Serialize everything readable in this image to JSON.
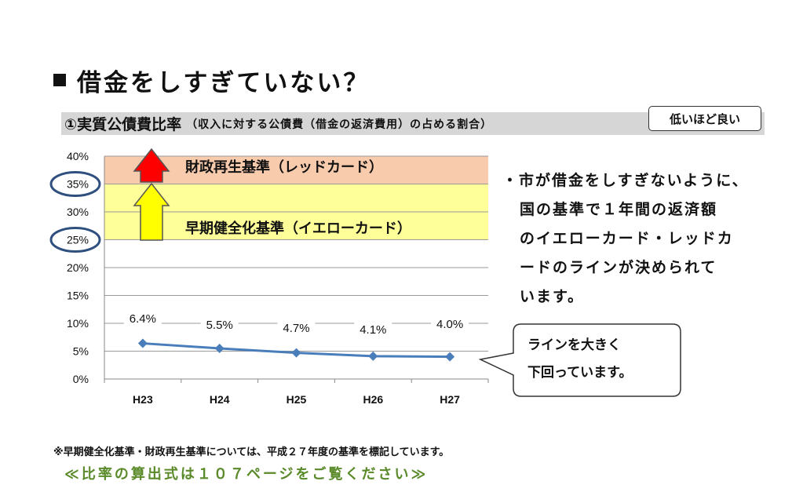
{
  "page": {
    "title": "借金をしすぎていない？",
    "subhead_main": "①実質公債費比率",
    "subhead_paren": "（収入に対する公債費（借金の返済費用）の占める割合）",
    "badge": "低いほど良い",
    "note_lines": [
      "・市が借金をしすぎないように、",
      "国の基準で１年間の返済額",
      "のイエローカード・レッドカ",
      "ードのラインが決められて",
      "います。"
    ],
    "callout_lines": [
      "ラインを大きく",
      "下回っています。"
    ],
    "footnote": "※早期健全化基準・財政再生基準については、平成２７年度の基準を標記しています。",
    "ref": "≪比率の算出式は１０７ページをご覧ください≫"
  },
  "chart_data": {
    "type": "line",
    "categories": [
      "H23",
      "H24",
      "H25",
      "H26",
      "H27"
    ],
    "values": [
      6.4,
      5.5,
      4.7,
      4.1,
      4.0
    ],
    "data_labels": [
      "6.4%",
      "5.5%",
      "4.7%",
      "4.1%",
      "4.0%"
    ],
    "ylim": [
      0,
      40
    ],
    "yticks": [
      0,
      5,
      10,
      15,
      20,
      25,
      30,
      35,
      40
    ],
    "ytick_labels": [
      "0%",
      "5%",
      "10%",
      "15%",
      "20%",
      "25%",
      "30%",
      "35%",
      "40%"
    ],
    "circled_ticks": [
      35,
      25
    ],
    "grid": true,
    "bands": [
      {
        "from": 35,
        "to": 40,
        "label": "財政再生基準（レッドカード）",
        "color": "#f8cbad"
      },
      {
        "from": 25,
        "to": 35,
        "label": "早期健全化基準（イエローカード）",
        "color": "#ffff99"
      }
    ],
    "line_color": "#4a7ebb",
    "circle_color": "#2f4f7f",
    "red_arrow_color": "#ff0000",
    "yellow_arrow_color": "#ffff00"
  }
}
